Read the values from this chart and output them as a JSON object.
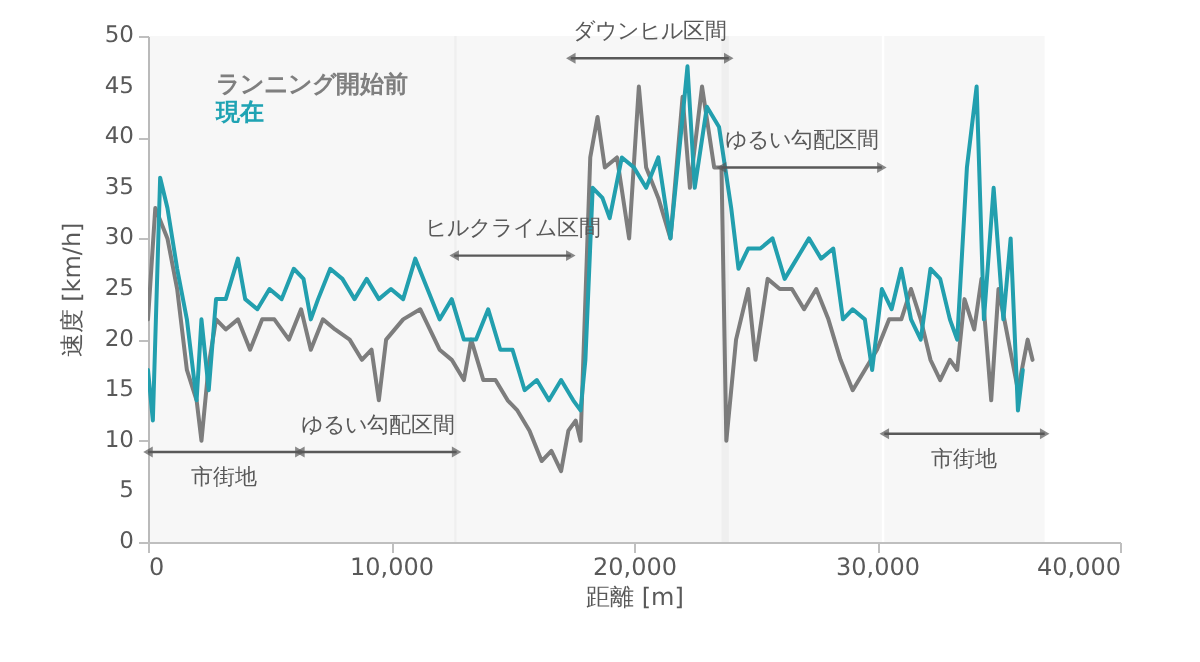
{
  "chart_data": {
    "type": "line",
    "xlabel": "距離 [m]",
    "ylabel": "速度 [km/h]",
    "legend": "top left",
    "xlim": [
      0,
      40000
    ],
    "xticks": [
      0,
      {
        "value": 10000,
        "label": "10,000"
      },
      {
        "value": 20000,
        "label": "20,000"
      },
      {
        "value": 30000,
        "label": "30,000"
      },
      {
        "value": 40000,
        "label": "40,000"
      }
    ],
    "ylim": [
      0,
      50
    ],
    "yticks": [
      0,
      5,
      10,
      15,
      20,
      25,
      30,
      35,
      40,
      45,
      50
    ],
    "bands": [
      {
        "axis": "x",
        "from": 0,
        "to": 6250,
        "label": "市街地"
      },
      {
        "axis": "x",
        "from": 6250,
        "to": 12700,
        "label": "ゆるい勾配区間"
      },
      {
        "axis": "x",
        "from": 12600,
        "to": 17400,
        "label": "ヒルクライム区間"
      },
      {
        "axis": "x",
        "from": 17400,
        "to": 23900,
        "label": "ダウンヒル区間"
      },
      {
        "axis": "x",
        "from": 23600,
        "to": 30200,
        "label": "ゆるい勾配区間"
      },
      {
        "axis": "x",
        "from": 30300,
        "to": 36900,
        "label": "市街地"
      }
    ],
    "series": [
      {
        "name": "ランニング開始前",
        "color": "#7f7f7f",
        "x": [
          0,
          300,
          800,
          1200,
          1600,
          2000,
          2200,
          2500,
          2800,
          3200,
          3700,
          4200,
          4700,
          5200,
          5800,
          6300,
          6700,
          7200,
          7700,
          8300,
          8800,
          9200,
          9500,
          9800,
          10500,
          11200,
          11600,
          12000,
          12500,
          13000,
          13300,
          13800,
          14300,
          14800,
          15200,
          15700,
          16200,
          16600,
          17000,
          17300,
          17600,
          17800,
          18200,
          18500,
          18800,
          19300,
          19800,
          20200,
          20500,
          21000,
          21500,
          22000,
          22300,
          22800,
          23300,
          23600,
          23800,
          24200,
          24700,
          25000,
          25500,
          26000,
          26500,
          27000,
          27500,
          28000,
          28500,
          29000,
          29500,
          30000,
          30500,
          31000,
          31400,
          31800,
          32200,
          32600,
          33000,
          33300,
          33600,
          34000,
          34300,
          34700,
          35000,
          35400,
          35800,
          36200,
          36400
        ],
        "values": [
          22,
          33,
          30,
          25,
          17,
          14,
          10,
          17.5,
          22,
          21,
          22,
          19,
          22,
          22,
          20,
          23,
          19,
          22,
          21,
          20,
          18,
          19,
          14,
          20,
          22,
          23,
          21,
          19,
          18,
          16,
          20,
          16,
          16,
          14,
          13,
          11,
          8,
          9,
          7,
          11,
          12,
          10,
          38,
          42,
          37,
          38,
          30,
          45,
          37,
          34,
          30,
          44,
          35,
          45,
          37,
          37,
          10,
          20,
          25,
          18,
          26,
          25,
          25,
          23,
          25,
          22,
          18,
          15,
          17,
          19,
          22,
          22,
          25,
          22,
          18,
          16,
          18,
          17,
          24,
          21,
          26,
          14,
          25,
          20,
          15,
          20,
          18
        ]
      },
      {
        "name": "現在",
        "color": "#1fa3b3",
        "x": [
          0,
          200,
          500,
          800,
          1200,
          1600,
          2000,
          2200,
          2500,
          2800,
          3200,
          3700,
          4000,
          4500,
          5000,
          5500,
          6000,
          6400,
          6700,
          7000,
          7500,
          8000,
          8500,
          9000,
          9500,
          10000,
          10500,
          11000,
          11500,
          12000,
          12500,
          13000,
          13500,
          14000,
          14500,
          15000,
          15500,
          16000,
          16500,
          17000,
          17500,
          17800,
          18000,
          18300,
          18700,
          19000,
          19500,
          20000,
          20500,
          21000,
          21500,
          22000,
          22200,
          22500,
          23000,
          23500,
          24000,
          24300,
          24700,
          25200,
          25700,
          26200,
          26700,
          27200,
          27700,
          28200,
          28600,
          29000,
          29500,
          29800,
          30200,
          30600,
          31000,
          31400,
          31800,
          32200,
          32600,
          33000,
          33300,
          33700,
          34100,
          34400,
          34800,
          35200,
          35500,
          35800,
          36000
        ],
        "values": [
          17,
          12,
          36,
          33,
          27,
          22,
          14,
          22,
          15,
          24,
          24,
          28,
          24,
          23,
          25,
          24,
          27,
          26,
          22,
          24,
          27,
          26,
          24,
          26,
          24,
          25,
          24,
          28,
          25,
          22,
          24,
          20,
          20,
          23,
          19,
          19,
          15,
          16,
          14,
          16,
          14,
          13,
          18,
          35,
          34,
          32,
          38,
          37,
          35,
          38,
          30,
          42,
          47,
          35,
          43,
          41,
          33,
          27,
          29,
          29,
          30,
          26,
          28,
          30,
          28,
          29,
          22,
          23,
          22,
          17,
          25,
          23,
          27,
          22,
          20,
          27,
          26,
          22,
          20,
          37,
          45,
          22,
          35,
          22,
          30,
          13,
          17
        ]
      }
    ]
  }
}
